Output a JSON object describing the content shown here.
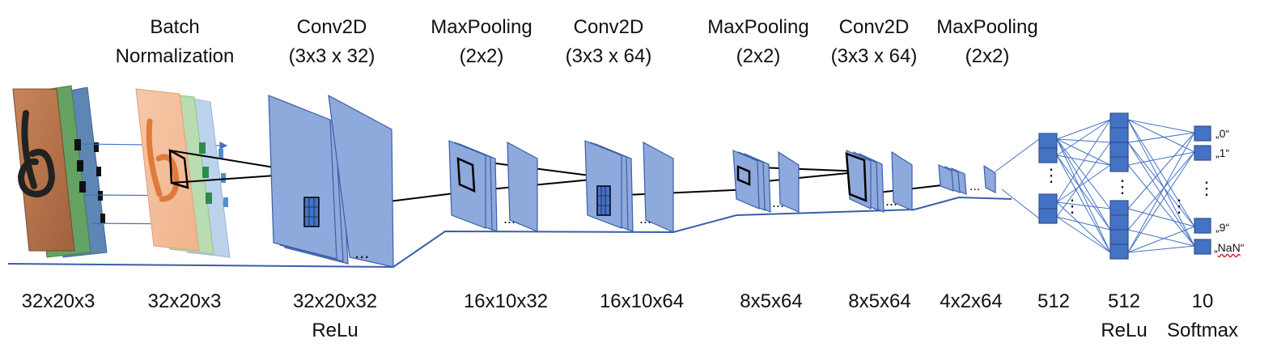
{
  "layers": [
    {
      "id": "batchnorm",
      "line1": "Batch",
      "line2": "Normalization"
    },
    {
      "id": "conv1",
      "line1": "Conv2D",
      "line2": "(3x3 x 32)"
    },
    {
      "id": "pool1",
      "line1": "MaxPooling",
      "line2": "(2x2)"
    },
    {
      "id": "conv2",
      "line1": "Conv2D",
      "line2": "(3x3 x 64)"
    },
    {
      "id": "pool2",
      "line1": "MaxPooling",
      "line2": "(2x2)"
    },
    {
      "id": "conv3",
      "line1": "Conv2D",
      "line2": "(3x3 x 64)"
    },
    {
      "id": "pool3",
      "line1": "MaxPooling",
      "line2": "(2x2)"
    }
  ],
  "dimensions": [
    {
      "shape": "32x20x3",
      "activation": ""
    },
    {
      "shape": "32x20x3",
      "activation": ""
    },
    {
      "shape": "32x20x32",
      "activation": "ReLu"
    },
    {
      "shape": "16x10x32",
      "activation": ""
    },
    {
      "shape": "16x10x64",
      "activation": ""
    },
    {
      "shape": "8x5x64",
      "activation": ""
    },
    {
      "shape": "8x5x64",
      "activation": ""
    },
    {
      "shape": "4x2x64",
      "activation": ""
    },
    {
      "shape": "512",
      "activation": ""
    },
    {
      "shape": "512",
      "activation": "ReLu"
    },
    {
      "shape": "10",
      "activation": "Softmax"
    }
  ],
  "output_classes": [
    "„0“",
    "„1“",
    "„9“",
    "„NaN“"
  ],
  "ellipsis": "...",
  "vertical_ellipsis": "⋮",
  "colors": {
    "feature_map_fill": "#8ea9db",
    "feature_map_stroke": "#3a5fa8",
    "neuron_fill": "#4472c4",
    "neuron_stroke": "#2f528f",
    "connection": "#4472c4",
    "kernel_line": "#000000",
    "input_orange": "#b5704a",
    "input_green": "#5a9a5a",
    "input_blue": "#4f7fb0"
  }
}
